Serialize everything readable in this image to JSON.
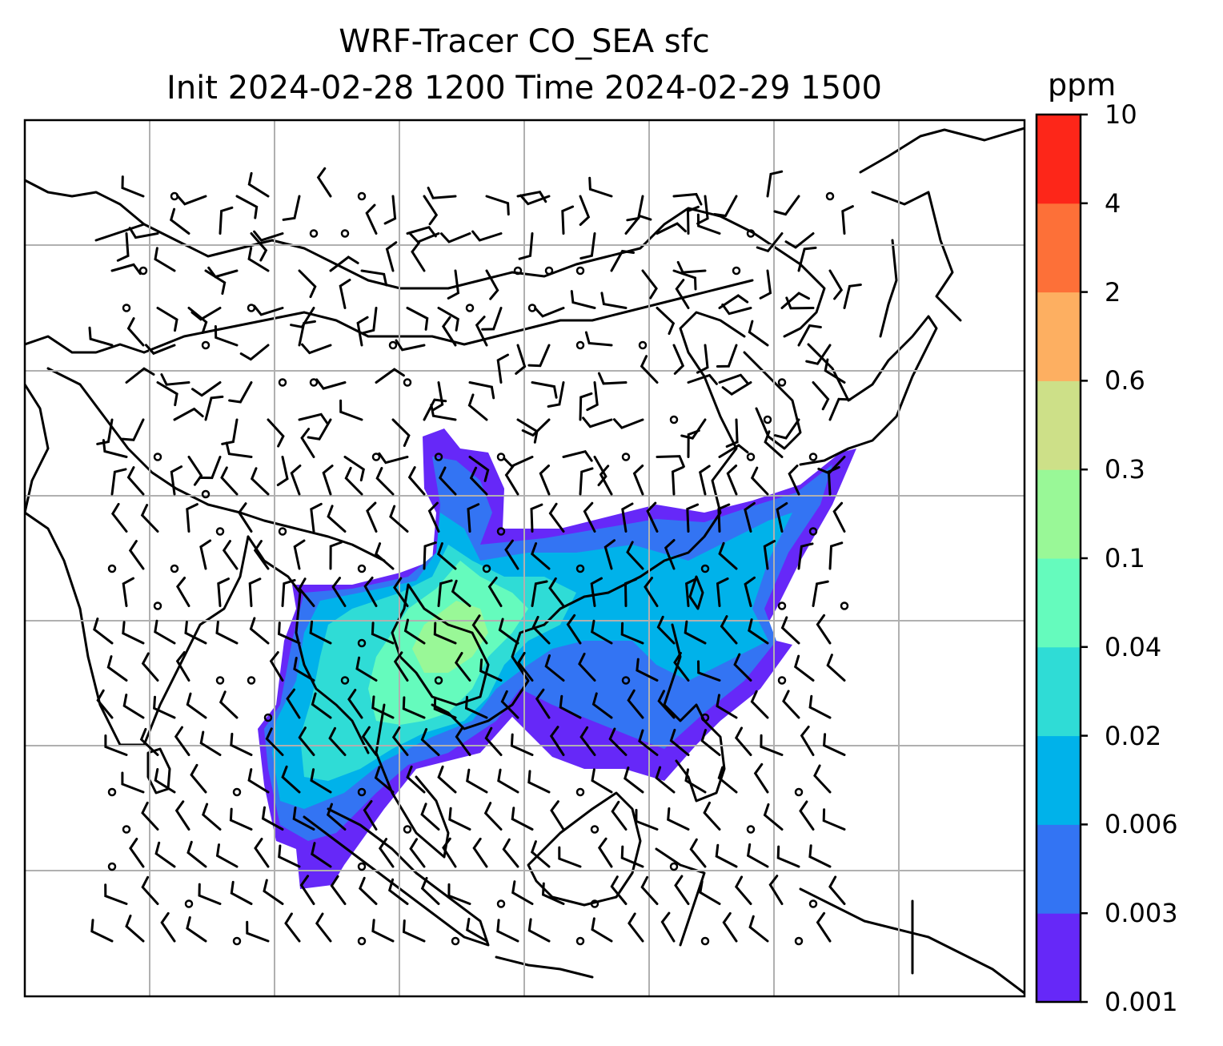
{
  "title": {
    "line1": "WRF-Tracer CO_SEA sfc",
    "line2": "Init 2024-02-28 1200 Time 2024-02-29 1500"
  },
  "colorbar": {
    "unit": "ppm",
    "ticks": [
      "0.001",
      "0.003",
      "0.006",
      "0.02",
      "0.04",
      "0.1",
      "0.3",
      "0.6",
      "2",
      "4",
      "10"
    ],
    "colors": [
      "#6628f8",
      "#3374f3",
      "#00b2ea",
      "#2fdcd6",
      "#65fbbd",
      "#99f897",
      "#cde088",
      "#fdaf61",
      "#fd7038",
      "#fd2619"
    ]
  },
  "map": {
    "gridlines": true,
    "wind_barbs": true
  }
}
